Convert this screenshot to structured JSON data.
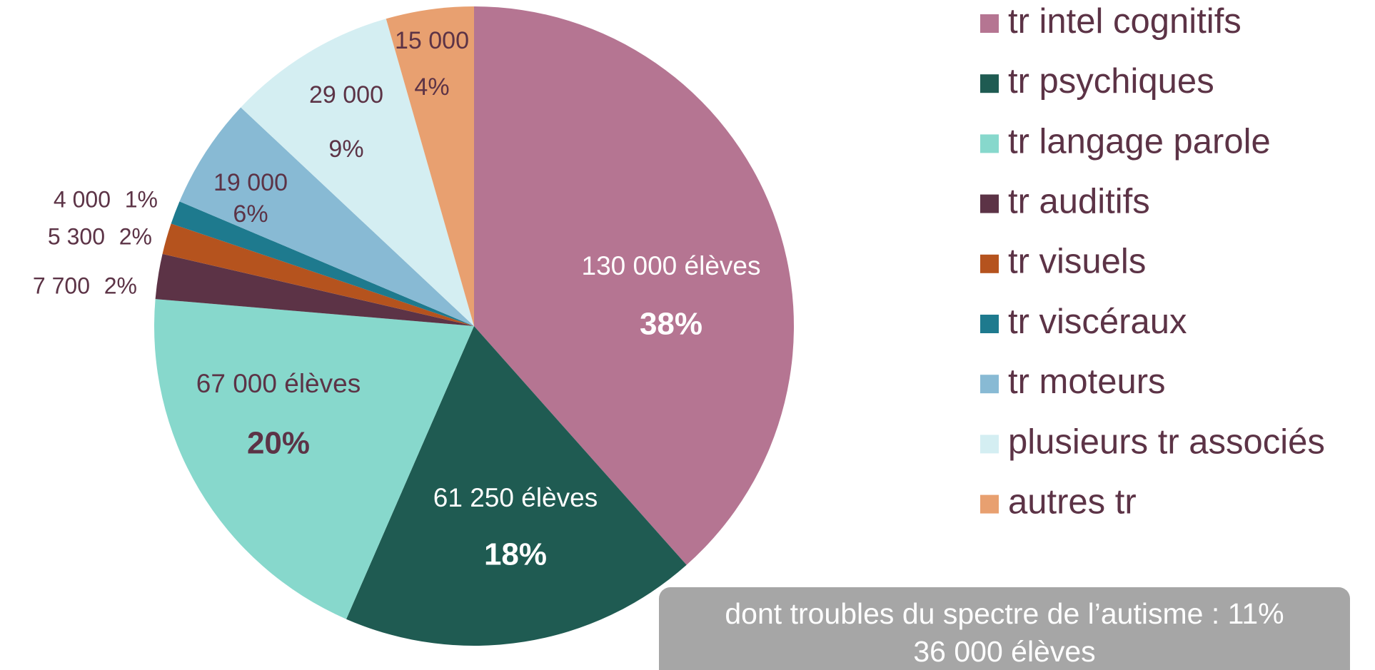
{
  "chart_data": {
    "type": "pie",
    "categories": [
      "tr intel cognitifs",
      "tr psychiques",
      "tr langage parole",
      "tr auditifs",
      "tr visuels",
      "tr viscéraux",
      "tr moteurs",
      "plusieurs tr associés",
      "autres tr"
    ],
    "values": [
      130000,
      61250,
      67000,
      7700,
      5300,
      4000,
      19000,
      29000,
      15000
    ],
    "value_labels": [
      "130 000 élèves",
      "61 250 élèves",
      "67 000 élèves",
      "7 700",
      "5 300",
      "4 000",
      "19 000",
      "29 000",
      "15 000"
    ],
    "percents": [
      38,
      18,
      20,
      2,
      2,
      1,
      6,
      9,
      4
    ],
    "percent_labels": [
      "38%",
      "18%",
      "20%",
      "2%",
      "2%",
      "1%",
      "6%",
      "9%",
      "4%"
    ],
    "colors": [
      "#b57592",
      "#1f5b52",
      "#87d8cc",
      "#5c3346",
      "#b5531e",
      "#1e7a8e",
      "#88bad4",
      "#d4eef2",
      "#e8a070"
    ],
    "legend": "right",
    "annotations": [
      "dont troubles du spectre de l’autisme : 11%",
      "36 000 élèves"
    ]
  }
}
